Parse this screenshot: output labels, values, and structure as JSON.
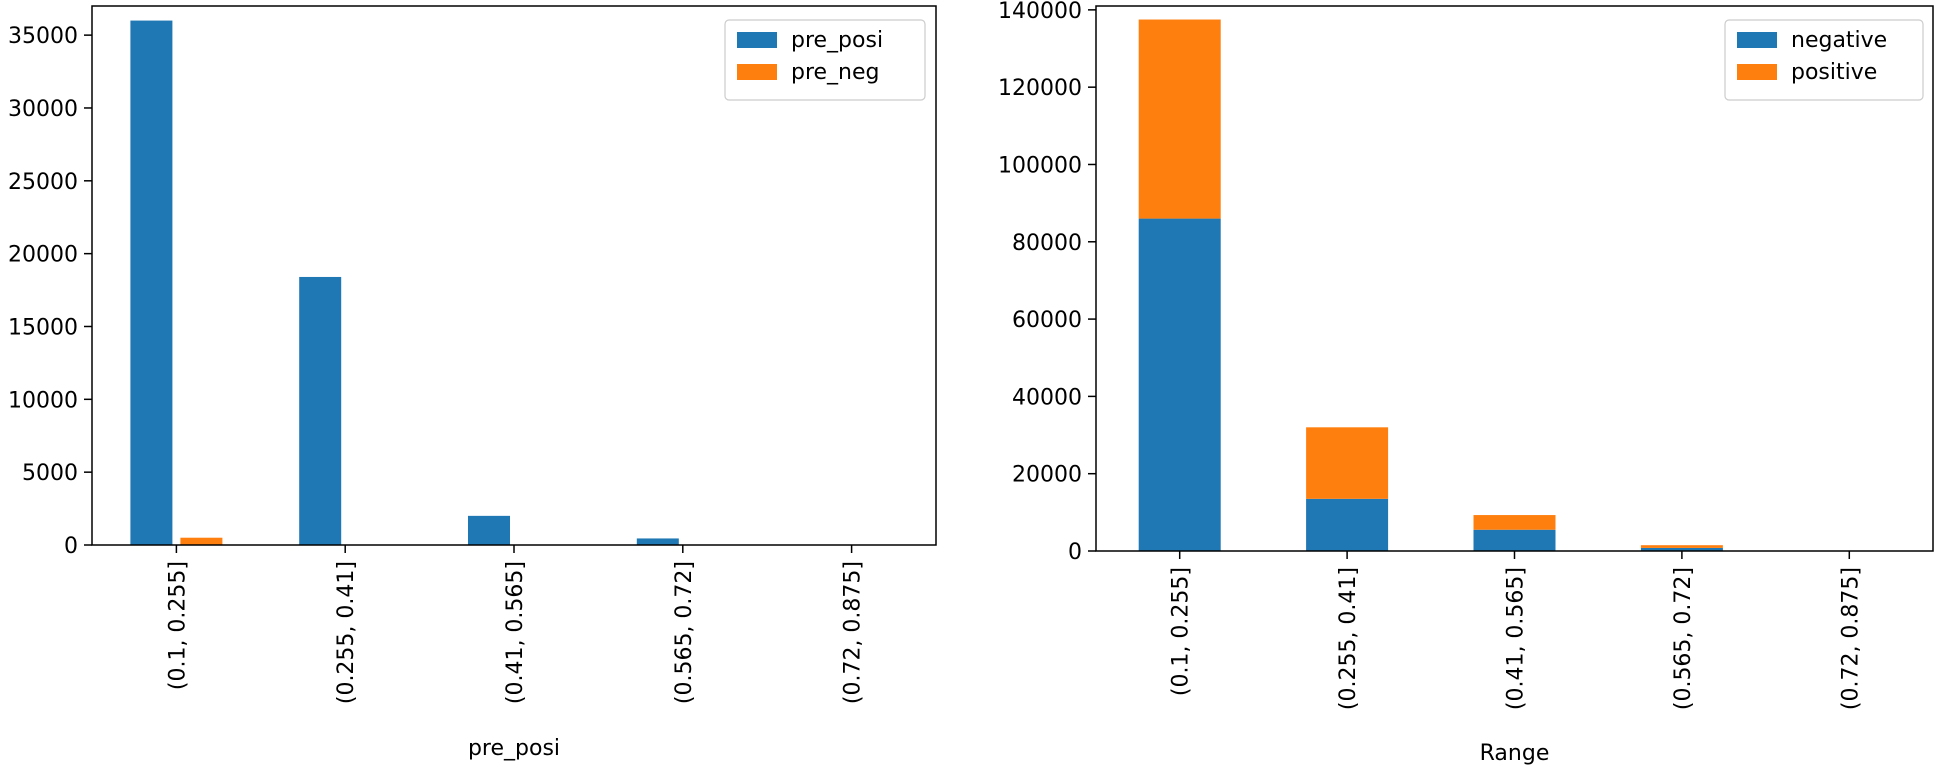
{
  "chart_data": [
    {
      "type": "bar",
      "stacked": false,
      "title": "",
      "xlabel": "pre_posi",
      "ylabel": "",
      "categories": [
        "(0.1, 0.255]",
        "(0.255, 0.41]",
        "(0.41, 0.565]",
        "(0.565, 0.72]",
        "(0.72, 0.875]"
      ],
      "series": [
        {
          "name": "pre_posi",
          "color": "#1f77b4",
          "values": [
            36000,
            18400,
            2000,
            450,
            0
          ]
        },
        {
          "name": "pre_neg",
          "color": "#ff7f0e",
          "values": [
            500,
            0,
            0,
            0,
            0
          ]
        }
      ],
      "ylim": [
        0,
        37000
      ],
      "yticks": [
        0,
        5000,
        10000,
        15000,
        20000,
        25000,
        30000,
        35000
      ],
      "grid": false,
      "legend": "top-right"
    },
    {
      "type": "bar",
      "stacked": true,
      "title": "",
      "xlabel": "Range",
      "ylabel": "",
      "categories": [
        "(0.1, 0.255]",
        "(0.255, 0.41]",
        "(0.41, 0.565]",
        "(0.565, 0.72]",
        "(0.72, 0.875]"
      ],
      "series": [
        {
          "name": "negative",
          "color": "#1f77b4",
          "values": [
            86000,
            13500,
            5500,
            800,
            0
          ]
        },
        {
          "name": "positive",
          "color": "#ff7f0e",
          "values": [
            51500,
            18500,
            3800,
            700,
            0
          ]
        }
      ],
      "ylim": [
        0,
        141000
      ],
      "yticks": [
        0,
        20000,
        40000,
        60000,
        80000,
        100000,
        120000,
        140000
      ],
      "grid": false,
      "legend": "top-right"
    }
  ]
}
